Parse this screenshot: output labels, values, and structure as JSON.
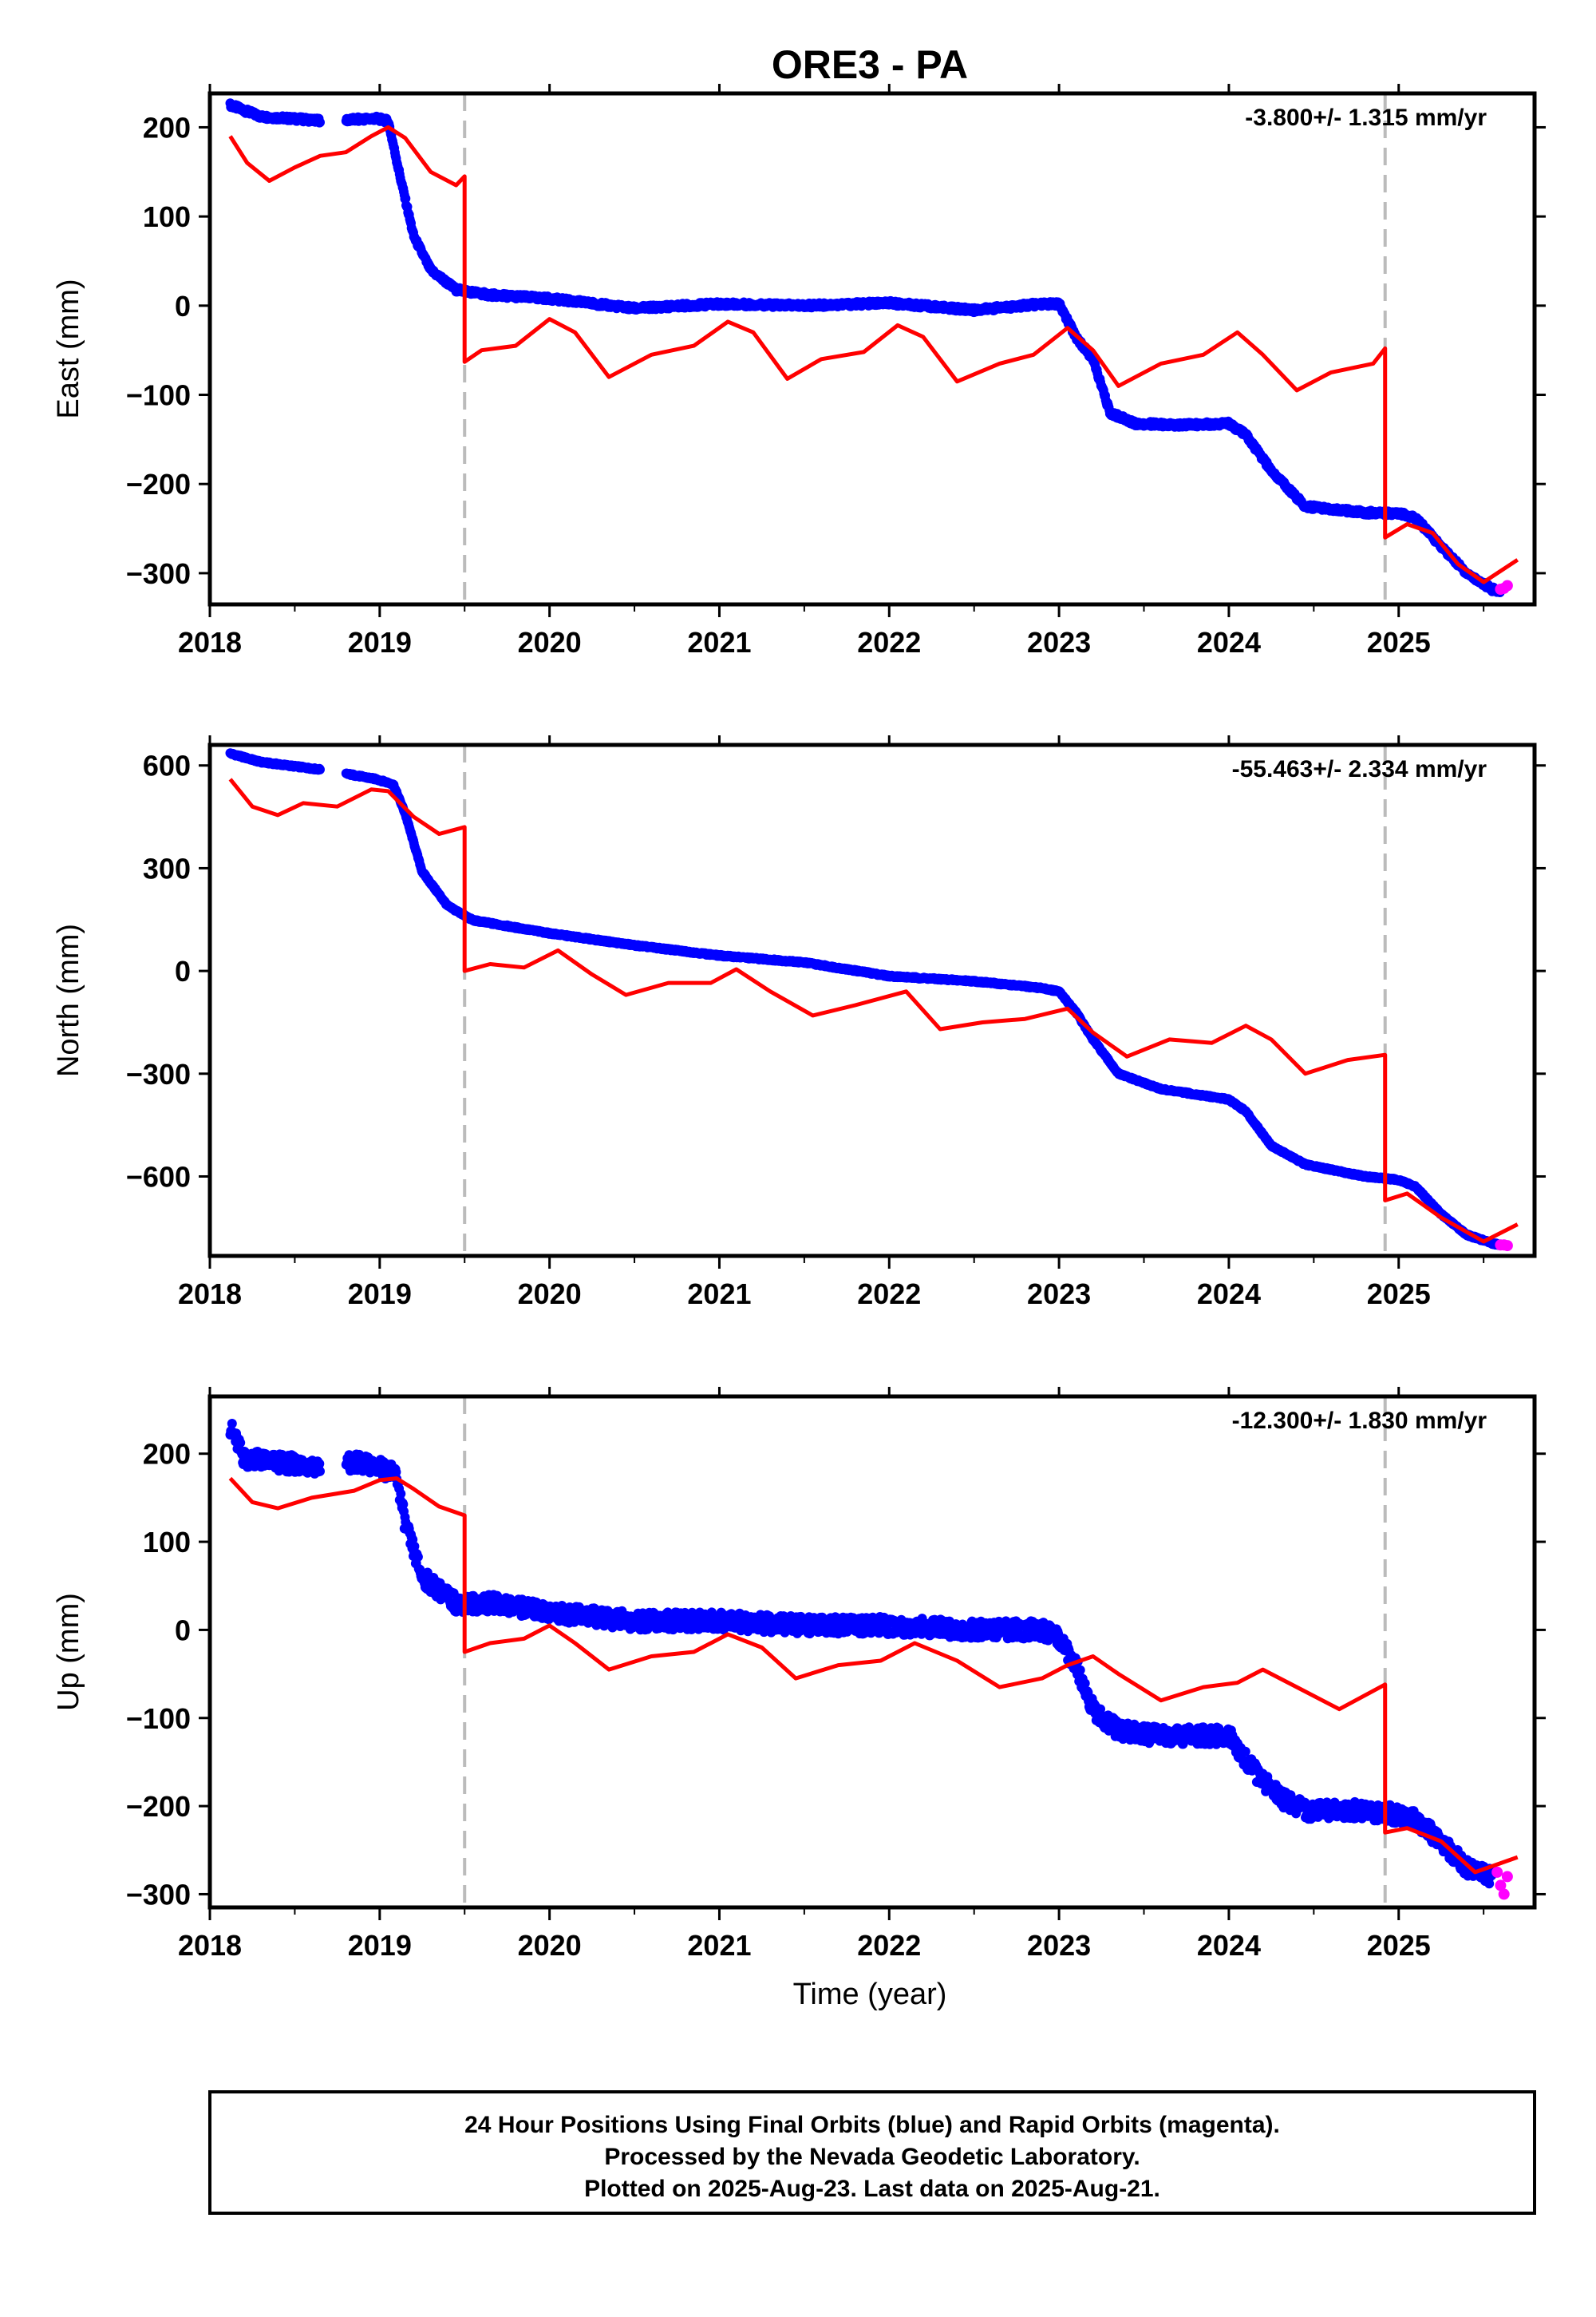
{
  "title": "ORE3 - PA",
  "xlabel": "Time (year)",
  "footer": [
    "24 Hour Positions Using Final Orbits (blue) and Rapid Orbits (magenta).",
    "Processed by the Nevada Geodetic Laboratory.",
    "Plotted on 2025-Aug-23. Last data on 2025-Aug-21."
  ],
  "colors": {
    "final": "#0000ff",
    "rapid": "#ff00ff",
    "model": "#ff0000",
    "event": "#bbbbbb"
  },
  "chart_data": [
    {
      "type": "scatter",
      "component": "east",
      "ylabel": "East (mm)",
      "rate_label": "-3.800+/- 1.315 mm/yr",
      "xlim": [
        2018.0,
        2025.8
      ],
      "ylim": [
        -335,
        238
      ],
      "yticks": [
        200,
        100,
        0,
        -100,
        -200,
        -300
      ],
      "xticks": [
        2018,
        2019,
        2020,
        2021,
        2022,
        2023,
        2024,
        2025
      ],
      "event_lines": [
        2019.5,
        2024.92
      ],
      "final_orbits_x": [
        2018.12,
        2018.3,
        2018.7,
        2018.98,
        2019.05,
        2019.12,
        2019.2,
        2019.3,
        2019.45,
        2019.65,
        2020.0,
        2020.5,
        2021.0,
        2021.5,
        2022.0,
        2022.5,
        2022.9,
        2023.0,
        2023.1,
        2023.2,
        2023.3,
        2023.45,
        2023.7,
        2024.0,
        2024.1,
        2024.25,
        2024.45,
        2024.8,
        2025.0,
        2025.1,
        2025.25,
        2025.4,
        2025.55,
        2025.6
      ],
      "final_orbits_y": [
        225,
        212,
        207,
        210,
        207,
        145,
        78,
        40,
        18,
        12,
        8,
        -3,
        2,
        0,
        3,
        -5,
        2,
        2,
        -35,
        -60,
        -120,
        -132,
        -134,
        -132,
        -145,
        -185,
        -225,
        -232,
        -233,
        -238,
        -270,
        -300,
        -318,
        -320
      ],
      "rapid_orbits_x": [
        2025.6,
        2025.62,
        2025.64
      ],
      "rapid_orbits_y": [
        -318,
        -317,
        -314
      ],
      "model_x": [
        2018.12,
        2018.22,
        2018.35,
        2018.5,
        2018.65,
        2018.8,
        2018.95,
        2019.05,
        2019.15,
        2019.3,
        2019.45,
        2019.5,
        2019.5,
        2019.6,
        2019.8,
        2020.0,
        2020.15,
        2020.35,
        2020.6,
        2020.85,
        2021.05,
        2021.2,
        2021.4,
        2021.6,
        2021.85,
        2022.05,
        2022.2,
        2022.4,
        2022.65,
        2022.85,
        2023.05,
        2023.2,
        2023.35,
        2023.6,
        2023.85,
        2024.05,
        2024.2,
        2024.4,
        2024.6,
        2024.85,
        2024.92,
        2024.92,
        2025.05,
        2025.2,
        2025.35,
        2025.5,
        2025.7
      ],
      "model_y": [
        190,
        160,
        140,
        155,
        168,
        172,
        190,
        200,
        188,
        150,
        135,
        145,
        -63,
        -50,
        -45,
        -15,
        -30,
        -80,
        -55,
        -45,
        -18,
        -30,
        -82,
        -60,
        -52,
        -22,
        -35,
        -85,
        -65,
        -55,
        -25,
        -50,
        -90,
        -65,
        -55,
        -30,
        -55,
        -95,
        -75,
        -65,
        -48,
        -260,
        -245,
        -255,
        -290,
        -310,
        -285
      ]
    },
    {
      "type": "scatter",
      "component": "north",
      "ylabel": "North (mm)",
      "rate_label": "-55.463+/- 2.334 mm/yr",
      "xlim": [
        2018.0,
        2025.8
      ],
      "ylim": [
        -832,
        660
      ],
      "yticks": [
        600,
        300,
        0,
        -300,
        -600
      ],
      "xticks": [
        2018,
        2019,
        2020,
        2021,
        2022,
        2023,
        2024,
        2025
      ],
      "event_lines": [
        2019.5,
        2024.92
      ],
      "final_orbits_x": [
        2018.12,
        2018.3,
        2018.7,
        2018.98,
        2019.08,
        2019.15,
        2019.25,
        2019.4,
        2019.55,
        2020.0,
        2020.5,
        2021.0,
        2021.5,
        2022.0,
        2022.5,
        2022.9,
        2023.0,
        2023.1,
        2023.2,
        2023.35,
        2023.6,
        2024.0,
        2024.1,
        2024.25,
        2024.45,
        2024.8,
        2025.0,
        2025.1,
        2025.25,
        2025.4,
        2025.55,
        2025.6
      ],
      "final_orbits_y": [
        635,
        610,
        585,
        560,
        545,
        460,
        290,
        190,
        148,
        110,
        75,
        45,
        25,
        -15,
        -30,
        -50,
        -60,
        -120,
        -200,
        -300,
        -345,
        -375,
        -410,
        -510,
        -565,
        -600,
        -610,
        -630,
        -710,
        -770,
        -795,
        -800
      ],
      "rapid_orbits_x": [
        2025.6,
        2025.62,
        2025.64
      ],
      "rapid_orbits_y": [
        -800,
        -800,
        -802
      ],
      "model_x": [
        2018.12,
        2018.25,
        2018.4,
        2018.55,
        2018.75,
        2018.95,
        2019.05,
        2019.2,
        2019.35,
        2019.5,
        2019.5,
        2019.65,
        2019.85,
        2020.05,
        2020.25,
        2020.45,
        2020.7,
        2020.95,
        2021.1,
        2021.3,
        2021.55,
        2021.8,
        2022.1,
        2022.3,
        2022.55,
        2022.8,
        2023.05,
        2023.2,
        2023.4,
        2023.65,
        2023.9,
        2024.1,
        2024.25,
        2024.45,
        2024.7,
        2024.92,
        2024.92,
        2025.05,
        2025.25,
        2025.5,
        2025.7
      ],
      "model_y": [
        560,
        480,
        455,
        490,
        480,
        530,
        525,
        450,
        400,
        420,
        0,
        20,
        10,
        60,
        -10,
        -70,
        -35,
        -35,
        5,
        -60,
        -130,
        -100,
        -60,
        -170,
        -150,
        -140,
        -110,
        -180,
        -250,
        -200,
        -210,
        -160,
        -200,
        -300,
        -260,
        -245,
        -670,
        -650,
        -720,
        -790,
        -740
      ]
    },
    {
      "type": "scatter",
      "component": "up",
      "ylabel": "Up (mm)",
      "rate_label": "-12.300+/- 1.830 mm/yr",
      "xlim": [
        2018.0,
        2025.8
      ],
      "ylim": [
        -315,
        265
      ],
      "yticks": [
        200,
        100,
        0,
        -100,
        -200,
        -300
      ],
      "xticks": [
        2018,
        2019,
        2020,
        2021,
        2022,
        2023,
        2024,
        2025
      ],
      "event_lines": [
        2019.5,
        2024.92
      ],
      "final_orbits_x": [
        2018.12,
        2018.2,
        2018.4,
        2018.7,
        2018.85,
        2019.0,
        2019.1,
        2019.15,
        2019.25,
        2019.45,
        2019.7,
        2020.0,
        2020.5,
        2021.0,
        2021.5,
        2022.0,
        2022.5,
        2022.9,
        2023.0,
        2023.1,
        2023.2,
        2023.35,
        2023.6,
        2024.0,
        2024.15,
        2024.3,
        2024.45,
        2024.8,
        2025.0,
        2025.1,
        2025.25,
        2025.4,
        2025.55
      ],
      "final_orbits_y": [
        230,
        195,
        190,
        185,
        190,
        185,
        175,
        120,
        60,
        30,
        30,
        20,
        10,
        10,
        5,
        5,
        0,
        0,
        -10,
        -40,
        -90,
        -115,
        -120,
        -120,
        -160,
        -190,
        -205,
        -205,
        -210,
        -215,
        -240,
        -270,
        -280
      ],
      "rapid_orbits_x": [
        2025.58,
        2025.6,
        2025.62,
        2025.64
      ],
      "rapid_orbits_y": [
        -275,
        -290,
        -300,
        -280
      ],
      "model_x": [
        2018.12,
        2018.25,
        2018.4,
        2018.6,
        2018.85,
        2019.0,
        2019.1,
        2019.2,
        2019.35,
        2019.5,
        2019.5,
        2019.65,
        2019.85,
        2020.0,
        2020.15,
        2020.35,
        2020.6,
        2020.85,
        2021.05,
        2021.25,
        2021.45,
        2021.7,
        2021.95,
        2022.15,
        2022.4,
        2022.65,
        2022.9,
        2023.05,
        2023.2,
        2023.35,
        2023.6,
        2023.85,
        2024.05,
        2024.2,
        2024.4,
        2024.65,
        2024.92,
        2024.92,
        2025.05,
        2025.25,
        2025.45,
        2025.7
      ],
      "model_y": [
        172,
        145,
        138,
        150,
        158,
        170,
        172,
        160,
        140,
        130,
        -25,
        -15,
        -10,
        5,
        -15,
        -45,
        -30,
        -25,
        -5,
        -20,
        -55,
        -40,
        -35,
        -15,
        -35,
        -65,
        -55,
        -40,
        -30,
        -50,
        -80,
        -65,
        -60,
        -45,
        -65,
        -90,
        -62,
        -230,
        -225,
        -240,
        -275,
        -258
      ]
    }
  ]
}
